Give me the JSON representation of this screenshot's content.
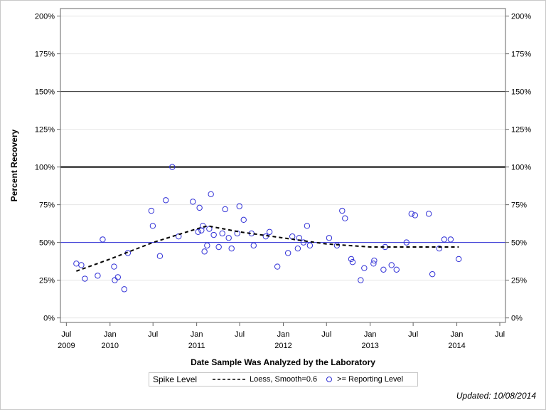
{
  "chart_data": {
    "type": "scatter",
    "xlabel": "Date Sample Was Analyzed by the Laboratory",
    "ylabel": "Percent Recovery",
    "xlim": [
      "2009-06-06",
      "2014-07-25"
    ],
    "ylim": [
      -3,
      205
    ],
    "yticks": [
      0,
      25,
      50,
      75,
      100,
      125,
      150,
      175,
      200
    ],
    "ytick_labels": [
      "0%",
      "25%",
      "50%",
      "75%",
      "100%",
      "125%",
      "150%",
      "175%",
      "200%"
    ],
    "xticks": [
      {
        "date": "2009-07-01",
        "month": "Jul",
        "year": "2009"
      },
      {
        "date": "2010-01-01",
        "month": "Jan",
        "year": "2010"
      },
      {
        "date": "2010-07-01",
        "month": "Jul",
        "year": ""
      },
      {
        "date": "2011-01-01",
        "month": "Jan",
        "year": "2011"
      },
      {
        "date": "2011-07-01",
        "month": "Jul",
        "year": ""
      },
      {
        "date": "2012-01-01",
        "month": "Jan",
        "year": "2012"
      },
      {
        "date": "2012-07-01",
        "month": "Jul",
        "year": ""
      },
      {
        "date": "2013-01-01",
        "month": "Jan",
        "year": "2013"
      },
      {
        "date": "2013-07-01",
        "month": "Jul",
        "year": ""
      },
      {
        "date": "2014-01-01",
        "month": "Jan",
        "year": "2014"
      },
      {
        "date": "2014-07-01",
        "month": "Jul",
        "year": ""
      }
    ],
    "grid": true,
    "reference_lines": [
      {
        "y": 150,
        "color": "#333333",
        "width": 1
      },
      {
        "y": 100,
        "color": "#000000",
        "width": 2
      },
      {
        "y": 50,
        "color": "#2f2fd6",
        "width": 1
      }
    ],
    "series": [
      {
        "name": ">= Reporting Level",
        "type": "scatter",
        "color": "#2f2fd6",
        "points": [
          [
            "2009-08-12",
            36
          ],
          [
            "2009-09-02",
            35
          ],
          [
            "2009-09-17",
            26
          ],
          [
            "2009-11-10",
            28
          ],
          [
            "2009-12-01",
            52
          ],
          [
            "2010-01-18",
            34
          ],
          [
            "2010-01-21",
            25
          ],
          [
            "2010-02-03",
            27
          ],
          [
            "2010-03-02",
            19
          ],
          [
            "2010-03-17",
            43
          ],
          [
            "2010-06-24",
            71
          ],
          [
            "2010-06-30",
            61
          ],
          [
            "2010-07-30",
            41
          ],
          [
            "2010-08-24",
            78
          ],
          [
            "2010-09-20",
            100
          ],
          [
            "2010-10-17",
            54
          ],
          [
            "2010-12-16",
            77
          ],
          [
            "2011-01-07",
            57
          ],
          [
            "2011-01-13",
            73
          ],
          [
            "2011-01-21",
            58
          ],
          [
            "2011-01-27",
            61
          ],
          [
            "2011-02-03",
            44
          ],
          [
            "2011-02-14",
            48
          ],
          [
            "2011-02-23",
            59
          ],
          [
            "2011-03-02",
            82
          ],
          [
            "2011-03-14",
            55
          ],
          [
            "2011-04-04",
            47
          ],
          [
            "2011-04-19",
            56
          ],
          [
            "2011-05-01",
            72
          ],
          [
            "2011-05-16",
            53
          ],
          [
            "2011-05-28",
            46
          ],
          [
            "2011-06-21",
            56
          ],
          [
            "2011-06-30",
            74
          ],
          [
            "2011-07-18",
            65
          ],
          [
            "2011-08-20",
            56
          ],
          [
            "2011-08-29",
            48
          ],
          [
            "2011-10-19",
            54
          ],
          [
            "2011-11-04",
            57
          ],
          [
            "2011-12-07",
            34
          ],
          [
            "2012-01-21",
            43
          ],
          [
            "2012-02-08",
            54
          ],
          [
            "2012-03-02",
            46
          ],
          [
            "2012-03-08",
            53
          ],
          [
            "2012-03-26",
            50
          ],
          [
            "2012-04-10",
            61
          ],
          [
            "2012-04-22",
            48
          ],
          [
            "2012-07-12",
            53
          ],
          [
            "2012-08-14",
            48
          ],
          [
            "2012-09-05",
            71
          ],
          [
            "2012-09-17",
            66
          ],
          [
            "2012-10-13",
            39
          ],
          [
            "2012-10-19",
            37
          ],
          [
            "2012-11-22",
            25
          ],
          [
            "2012-12-07",
            33
          ],
          [
            "2013-01-15",
            36
          ],
          [
            "2013-01-18",
            38
          ],
          [
            "2013-02-26",
            32
          ],
          [
            "2013-03-05",
            47
          ],
          [
            "2013-04-01",
            35
          ],
          [
            "2013-04-22",
            32
          ],
          [
            "2013-06-03",
            50
          ],
          [
            "2013-06-24",
            69
          ],
          [
            "2013-07-09",
            68
          ],
          [
            "2013-09-05",
            69
          ],
          [
            "2013-09-20",
            29
          ],
          [
            "2013-10-19",
            46
          ],
          [
            "2013-11-09",
            52
          ],
          [
            "2013-12-06",
            52
          ],
          [
            "2014-01-09",
            39
          ]
        ]
      },
      {
        "name": "Loess, Smooth=0.6",
        "type": "line",
        "color": "#000000",
        "points": [
          [
            "2009-08-12",
            31
          ],
          [
            "2010-01-01",
            39
          ],
          [
            "2010-07-01",
            50
          ],
          [
            "2011-01-01",
            59
          ],
          [
            "2011-02-16",
            61
          ],
          [
            "2011-07-01",
            57
          ],
          [
            "2012-01-01",
            53
          ],
          [
            "2012-07-01",
            49
          ],
          [
            "2013-01-01",
            47
          ],
          [
            "2013-07-01",
            47
          ],
          [
            "2014-01-09",
            47
          ]
        ]
      }
    ]
  },
  "legend": {
    "title": "Spike Level",
    "loess_label": "Loess, Smooth=0.6",
    "points_label": ">= Reporting Level"
  },
  "footer": {
    "updated": "Updated: 10/08/2014"
  }
}
